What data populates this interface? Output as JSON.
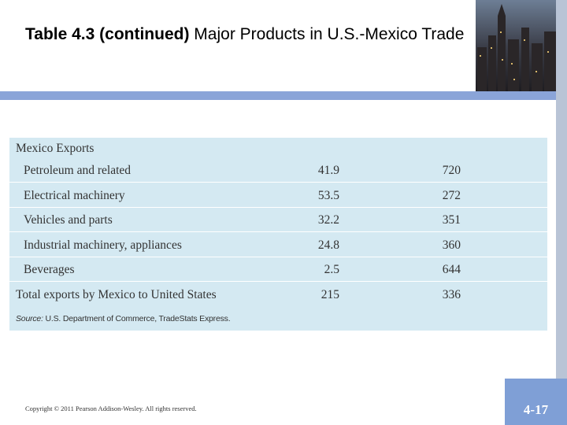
{
  "header": {
    "title_bold": "Table 4.3 (continued)",
    "title_rest": " Major Products in U.S.-Mexico Trade"
  },
  "table": {
    "title": "Mexico Exports",
    "rows": [
      [
        "Petroleum and related",
        41.9,
        720
      ],
      [
        "Electrical machinery",
        53.5,
        272
      ],
      [
        "Vehicles and parts",
        32.2,
        351
      ],
      [
        "Industrial machinery, appliances",
        24.8,
        360
      ],
      [
        "Beverages",
        2.5,
        644
      ]
    ],
    "total": [
      "Total exports by Mexico to United States",
      215,
      336
    ],
    "source_label": "Source:",
    "source_text": " U.S. Department of Commerce, TradeStats Express."
  },
  "footer": {
    "copyright": "Copyright © 2011 Pearson Addison-Wesley. All rights reserved.",
    "page": "4-17"
  }
}
